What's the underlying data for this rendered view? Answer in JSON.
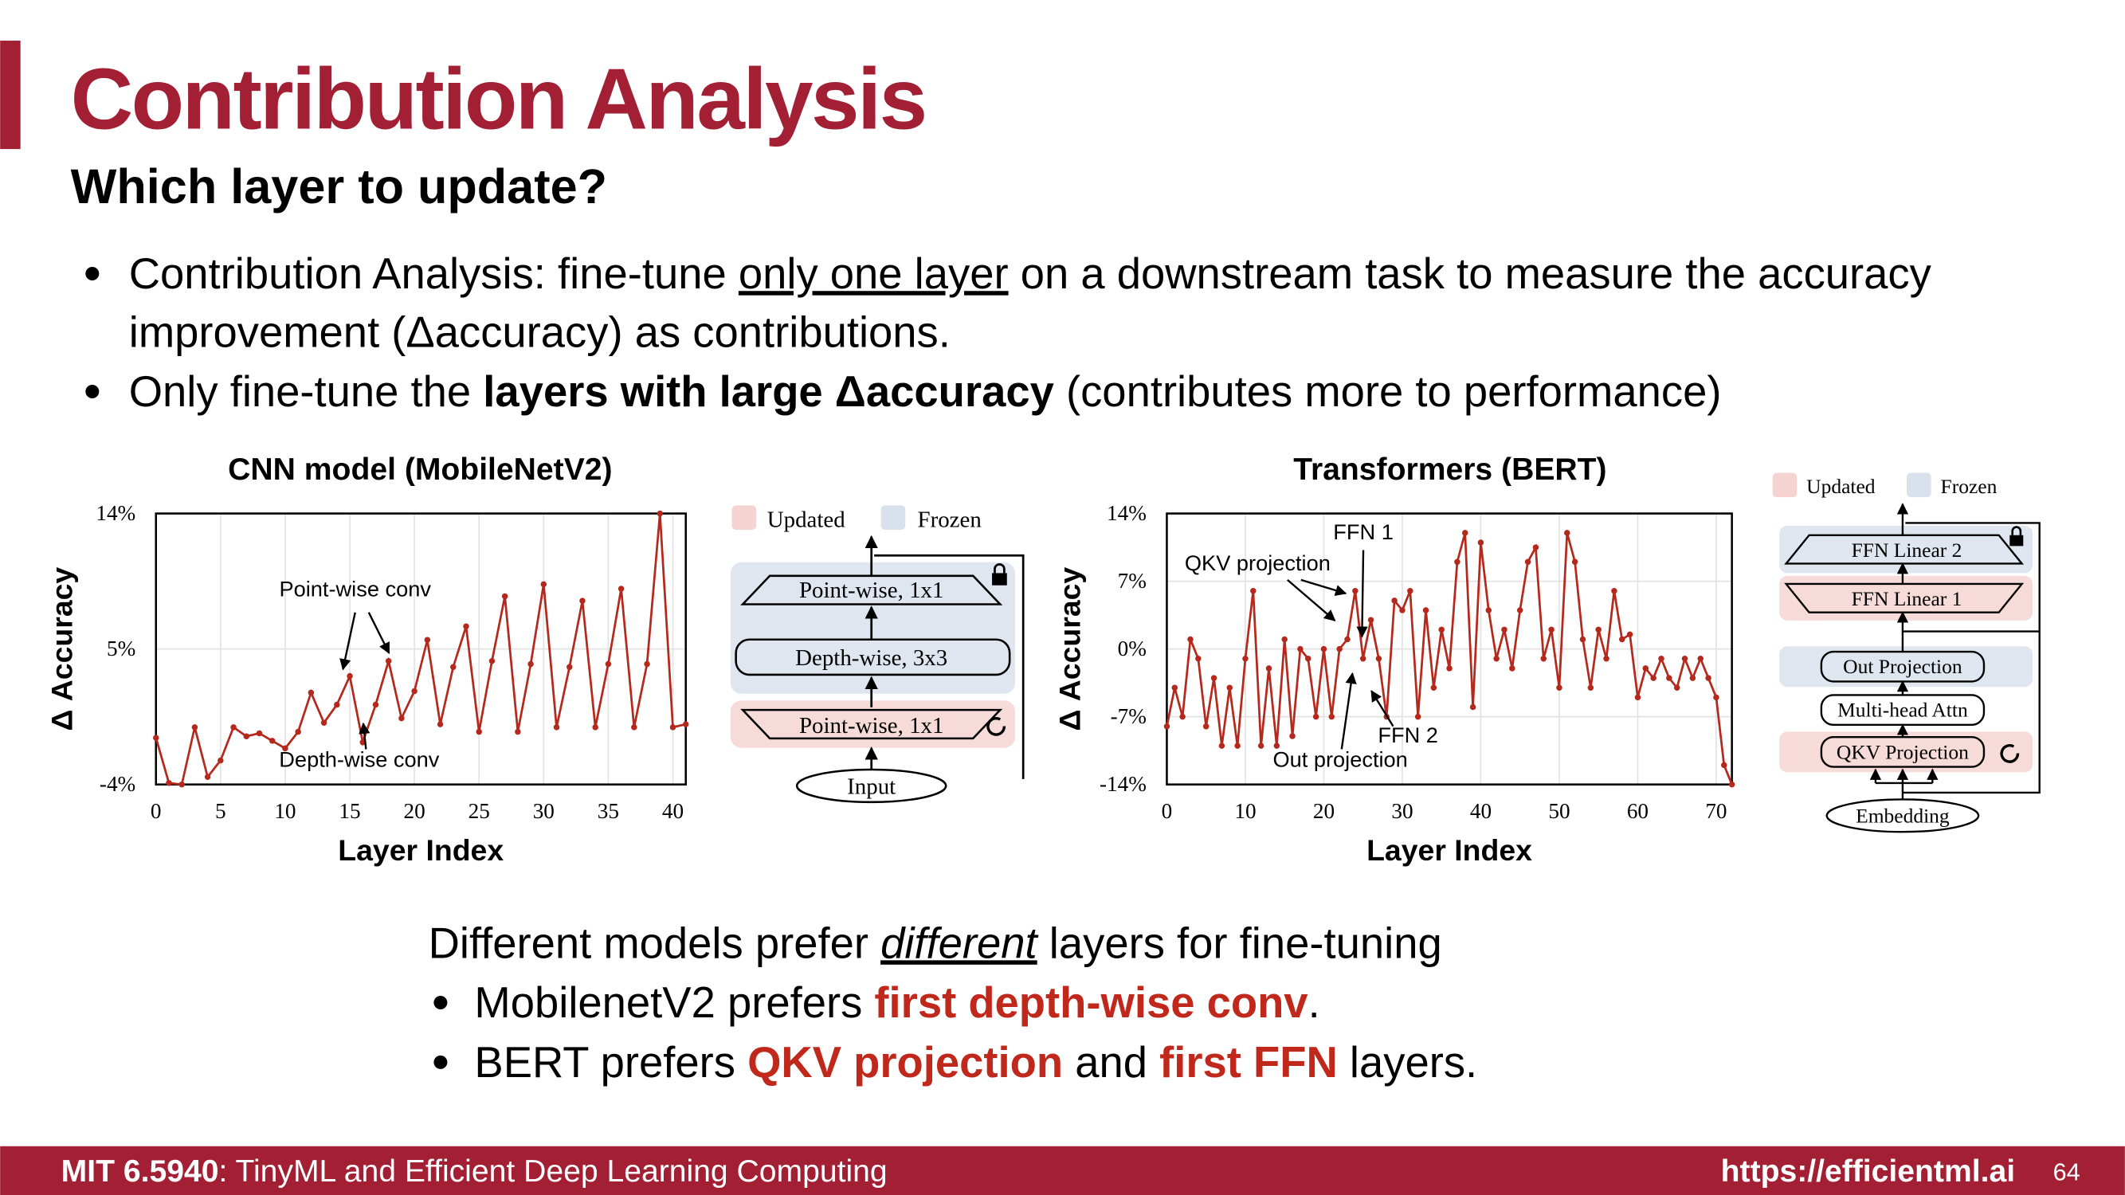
{
  "slide": {
    "title": "Contribution Analysis",
    "subtitle": "Which layer to update?",
    "bullets": [
      [
        "Contribution Analysis: fine-tune ",
        "only one layer",
        " on a downstream task to measure the accuracy",
        "improvement (Δaccuracy) as contributions."
      ],
      [
        "Only fine-tune the ",
        "layers with large Δaccuracy",
        " (contributes more to performance)"
      ]
    ],
    "summary": {
      "heading": [
        "Different models prefer ",
        "different",
        " layers for fine-tuning"
      ],
      "points": [
        [
          "MobilenetV2 prefers ",
          "first depth-wise conv",
          "."
        ],
        [
          "BERT prefers ",
          "QKV projection",
          " and ",
          "first FFN",
          " layers."
        ]
      ]
    },
    "diagrams": {
      "cnn": {
        "legend": [
          "Updated",
          "Frozen"
        ],
        "blocks": [
          "Point-wise, 1x1",
          "Depth-wise, 3x3",
          "Point-wise, 1x1",
          "Input"
        ]
      },
      "bert": {
        "legend": [
          "Updated",
          "Frozen"
        ],
        "blocks": [
          "FFN Linear 2",
          "FFN Linear 1",
          "Out Projection",
          "Multi-head Attn",
          "QKV Projection",
          "Embedding"
        ]
      }
    },
    "footer": {
      "course": "MIT 6.5940",
      "course_title": ": TinyML and Efficient Deep Learning Computing",
      "url": "https://efficientml.ai",
      "page": 64
    }
  },
  "chart_data": [
    {
      "type": "line",
      "title": "CNN model (MobileNetV2)",
      "x_label": "Layer Index",
      "y_label": "Δ Accuracy",
      "color": "#b5281c",
      "grid": true,
      "x": [
        0,
        1,
        2,
        3,
        4,
        5,
        6,
        7,
        8,
        9,
        10,
        11,
        12,
        13,
        14,
        15,
        16,
        17,
        18,
        19,
        20,
        21,
        22,
        23,
        24,
        25,
        26,
        27,
        28,
        29,
        30,
        31,
        32,
        33,
        34,
        35,
        36,
        37,
        38,
        39,
        40,
        41
      ],
      "values": [
        -0.9,
        -3.9,
        -4,
        -0.2,
        -3.5,
        -2.4,
        -0.2,
        -0.8,
        -0.6,
        -1.1,
        -1.6,
        -0.5,
        2.1,
        0.1,
        1.3,
        3.2,
        -1.2,
        1.3,
        4.2,
        0.4,
        2.2,
        5.6,
        0,
        3.8,
        6.5,
        -0.5,
        4.2,
        8.5,
        -0.5,
        4,
        9.3,
        -0.2,
        3.8,
        8.2,
        -0.2,
        4,
        9,
        -0.2,
        4,
        14,
        -0.2,
        0
      ],
      "xlim": [
        0,
        41
      ],
      "xticks": [
        0,
        5,
        10,
        15,
        20,
        25,
        30,
        35,
        40
      ],
      "ylim": [
        -4,
        14
      ],
      "yticks": [
        {
          "value": -4,
          "label": "-4%"
        },
        {
          "value": 5,
          "label": "5%"
        },
        {
          "value": 14,
          "label": "14%"
        }
      ],
      "annotations": [
        "Point-wise conv",
        "Depth-wise conv"
      ]
    },
    {
      "type": "line",
      "title": "Transformers (BERT)",
      "x_label": "Layer Index",
      "y_label": "Δ Accuracy",
      "color": "#b5281c",
      "grid": true,
      "x": [
        0,
        1,
        2,
        3,
        4,
        5,
        6,
        7,
        8,
        9,
        10,
        11,
        12,
        13,
        14,
        15,
        16,
        17,
        18,
        19,
        20,
        21,
        22,
        23,
        24,
        25,
        26,
        27,
        28,
        29,
        30,
        31,
        32,
        33,
        34,
        35,
        36,
        37,
        38,
        39,
        40,
        41,
        42,
        43,
        44,
        45,
        46,
        47,
        48,
        49,
        50,
        51,
        52,
        53,
        54,
        55,
        56,
        57,
        58,
        59,
        60,
        61,
        62,
        63,
        64,
        65,
        66,
        67,
        68,
        69,
        70,
        71,
        72
      ],
      "values": [
        -8,
        -4,
        -7,
        1,
        -1,
        -8,
        -3,
        -10,
        -4,
        -10,
        -1,
        6,
        -10,
        -2,
        -10,
        1,
        -9,
        0,
        -1,
        -7,
        0,
        -7,
        0,
        1,
        6,
        -1,
        3,
        -1,
        -7,
        5,
        4,
        6,
        -7,
        4,
        -4,
        2,
        -2,
        9,
        12,
        -6,
        11,
        4,
        -1,
        2,
        -2,
        4,
        9,
        10.5,
        -1,
        2,
        -4,
        12,
        9,
        1,
        -4,
        2,
        -1,
        6,
        1,
        1.5,
        -5,
        -2,
        -3,
        -1,
        -3,
        -4,
        -1,
        -3,
        -1,
        -3,
        -5,
        -12,
        -14
      ],
      "xlim": [
        0,
        72
      ],
      "xticks": [
        0,
        10,
        20,
        30,
        40,
        50,
        60,
        70
      ],
      "ylim": [
        -14,
        14
      ],
      "yticks": [
        {
          "value": -14,
          "label": "-14%"
        },
        {
          "value": -7,
          "label": "-7%"
        },
        {
          "value": 0,
          "label": "0%"
        },
        {
          "value": 7,
          "label": "7%"
        },
        {
          "value": 14,
          "label": "14%"
        }
      ],
      "annotations": [
        "QKV projection",
        "FFN 1",
        "FFN 2",
        "Out projection"
      ]
    }
  ]
}
